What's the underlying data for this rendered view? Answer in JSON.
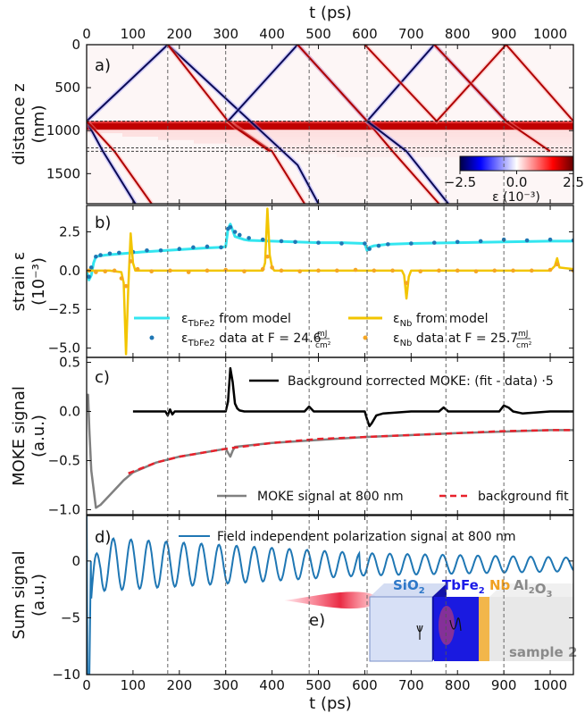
{
  "chart_data": [
    {
      "panel": "a)",
      "type": "heatmap",
      "xlabel": "t (ps)",
      "ylabel": "distance z (nm)",
      "xlim": [
        0,
        1050
      ],
      "ylim": [
        1850,
        0
      ],
      "xticks": [
        0,
        100,
        200,
        300,
        400,
        500,
        600,
        700,
        800,
        900,
        1000
      ],
      "yticks": [
        0,
        500,
        1000,
        1500
      ],
      "colorbar": {
        "label": "ε (10⁻³)",
        "ticks": [
          -2.5,
          0.0,
          2.5
        ],
        "cmap": "seismic"
      },
      "layer_interfaces_nm": [
        890,
        1200,
        1240
      ],
      "pulse_paths": [
        {
          "sign": "negative",
          "points": [
            [
              0,
              890
            ],
            [
              175,
              0
            ],
            [
              455,
              1400
            ],
            [
              500,
              1850
            ]
          ]
        },
        {
          "sign": "negative",
          "points": [
            [
              0,
              890
            ],
            [
              35,
              1240
            ],
            [
              105,
              1850
            ]
          ]
        },
        {
          "sign": "positive",
          "points": [
            [
              0,
              890
            ],
            [
              60,
              1240
            ],
            [
              140,
              1850
            ]
          ]
        },
        {
          "sign": "positive",
          "points": [
            [
              175,
              0
            ],
            [
              305,
              890
            ],
            [
              400,
              1240
            ],
            [
              470,
              1850
            ]
          ]
        },
        {
          "sign": "negative",
          "points": [
            [
              305,
              890
            ],
            [
              455,
              0
            ],
            [
              605,
              890
            ],
            [
              750,
              0
            ],
            [
              905,
              890
            ]
          ]
        },
        {
          "sign": "positive",
          "points": [
            [
              305,
              890
            ],
            [
              320,
              960
            ],
            [
              395,
              1240
            ]
          ]
        },
        {
          "sign": "positive",
          "points": [
            [
              455,
              0
            ],
            [
              605,
              890
            ],
            [
              660,
              1240
            ],
            [
              760,
              1850
            ]
          ]
        },
        {
          "sign": "positive",
          "points": [
            [
              600,
              0
            ],
            [
              755,
              890
            ],
            [
              905,
              0
            ],
            [
              1050,
              890
            ]
          ]
        },
        {
          "sign": "negative",
          "points": [
            [
              605,
              890
            ],
            [
              690,
              1240
            ],
            [
              780,
              1850
            ]
          ]
        },
        {
          "sign": "positive",
          "points": [
            [
              750,
              0
            ],
            [
              905,
              890
            ],
            [
              1000,
              1240
            ]
          ]
        }
      ]
    },
    {
      "panel": "b)",
      "type": "line",
      "xlabel": "t (ps)",
      "ylabel": "strain ε (10⁻³)",
      "xlim": [
        0,
        1050
      ],
      "ylim": [
        -5.6,
        4.2
      ],
      "yticks": [
        -5.0,
        -2.5,
        0.0,
        2.5
      ],
      "series": [
        {
          "name": "ε_TbFe2 from model",
          "style": "line",
          "color": "#33e6f0",
          "x": [
            0,
            5,
            10,
            15,
            20,
            40,
            80,
            120,
            200,
            250,
            290,
            300,
            305,
            310,
            315,
            320,
            330,
            340,
            350,
            400,
            450,
            500,
            550,
            600,
            605,
            610,
            620,
            650,
            700,
            800,
            900,
            1000,
            1050
          ],
          "y": [
            0,
            -0.6,
            -0.3,
            0.5,
            0.9,
            1.0,
            1.1,
            1.2,
            1.35,
            1.45,
            1.5,
            1.55,
            2.7,
            3.0,
            2.6,
            2.2,
            2.1,
            2.0,
            1.95,
            1.9,
            1.85,
            1.8,
            1.8,
            1.75,
            1.3,
            1.5,
            1.6,
            1.7,
            1.75,
            1.8,
            1.85,
            1.9,
            1.9
          ]
        },
        {
          "name": "ε_TbFe2 data at F = 24.6 mJ/cm²",
          "style": "scatter",
          "color": "#1f77b4",
          "x": [
            5,
            10,
            20,
            30,
            50,
            70,
            100,
            130,
            160,
            200,
            230,
            260,
            290,
            305,
            310,
            320,
            330,
            350,
            380,
            420,
            450,
            500,
            550,
            600,
            610,
            630,
            650,
            700,
            750,
            800,
            850,
            900,
            950,
            1000,
            1050
          ],
          "y": [
            -0.4,
            0.2,
            0.9,
            1.0,
            1.1,
            1.15,
            1.2,
            1.3,
            1.3,
            1.4,
            1.5,
            1.55,
            1.5,
            2.7,
            2.8,
            2.5,
            2.3,
            2.1,
            2.0,
            1.9,
            1.85,
            1.8,
            1.75,
            1.75,
            1.4,
            1.6,
            1.7,
            1.75,
            1.8,
            1.85,
            1.9,
            2.0,
            1.95,
            2.0,
            1.95
          ]
        },
        {
          "name": "ε_Nb from model",
          "style": "line",
          "color": "#f2c500",
          "x": [
            0,
            50,
            75,
            80,
            85,
            90,
            95,
            100,
            105,
            300,
            380,
            385,
            390,
            395,
            400,
            405,
            600,
            680,
            685,
            690,
            695,
            700,
            1000,
            1010,
            1015,
            1020,
            1050
          ],
          "y": [
            0,
            0,
            -0.1,
            -0.8,
            -5.4,
            -1.0,
            2.4,
            0.5,
            0,
            0,
            0,
            0.5,
            4.0,
            1.0,
            0.2,
            0,
            0,
            0,
            -0.3,
            -1.8,
            -0.4,
            0,
            0,
            0.3,
            0.8,
            0.2,
            0.1
          ]
        },
        {
          "name": "ε_Nb data at F = 25.7 mJ/cm²",
          "style": "scatter",
          "color": "#f5a623",
          "x": [
            5,
            20,
            40,
            60,
            75,
            85,
            95,
            110,
            140,
            180,
            220,
            260,
            300,
            340,
            380,
            390,
            400,
            420,
            460,
            500,
            540,
            580,
            620,
            660,
            690,
            720,
            760,
            800,
            840,
            880,
            920,
            960,
            1000,
            1015,
            1050
          ],
          "y": [
            0,
            -0.1,
            -0.05,
            0,
            -0.5,
            -1.0,
            0.6,
            0.1,
            -0.05,
            0,
            -0.1,
            0,
            0.05,
            -0.05,
            0.1,
            0.9,
            0.2,
            0,
            -0.05,
            0,
            0,
            0.05,
            0,
            0,
            -0.8,
            -0.05,
            0,
            0,
            -0.05,
            0,
            0,
            0,
            0.05,
            0.4,
            0
          ]
        }
      ],
      "legend": [
        "ε_TbFe2 from model",
        "ε_TbFe2 data at F = 24.6 mJ/cm²",
        "ε_Nb from model",
        "ε_Nb data at F = 25.7 mJ/cm²"
      ]
    },
    {
      "panel": "c)",
      "type": "line",
      "xlabel": "t (ps)",
      "ylabel": "MOKE signal (a.u.)",
      "xlim": [
        0,
        1050
      ],
      "ylim": [
        -1.05,
        0.55
      ],
      "yticks": [
        -1.0,
        -0.5,
        0.0,
        0.5
      ],
      "series": [
        {
          "name": "Background corrected MOKE: (fit - data) ·5",
          "style": "line",
          "color": "#000000",
          "x": [
            100,
            170,
            175,
            180,
            185,
            190,
            300,
            305,
            310,
            315,
            320,
            325,
            330,
            340,
            400,
            470,
            480,
            490,
            500,
            600,
            605,
            610,
            615,
            625,
            640,
            700,
            760,
            770,
            780,
            800,
            890,
            900,
            910,
            920,
            940,
            1000,
            1050
          ],
          "y": [
            0.0,
            0.0,
            -0.04,
            0.02,
            -0.03,
            0.0,
            0.0,
            0.1,
            0.44,
            0.3,
            0.08,
            0.03,
            0.01,
            0.0,
            0.0,
            0.0,
            0.05,
            0.0,
            0.0,
            0.0,
            -0.08,
            -0.15,
            -0.12,
            -0.04,
            -0.02,
            0.0,
            0.0,
            0.04,
            0.0,
            0.0,
            0.0,
            0.06,
            0.04,
            0.0,
            -0.02,
            0.0,
            0.0
          ]
        },
        {
          "name": "MOKE signal at 800 nm",
          "style": "line",
          "color": "#808080",
          "x": [
            0,
            3,
            6,
            10,
            20,
            30,
            50,
            80,
            100,
            150,
            200,
            300,
            305,
            310,
            315,
            320,
            400,
            600,
            800,
            1000,
            1050
          ],
          "y": [
            0,
            0.17,
            -0.2,
            -0.6,
            -0.98,
            -0.95,
            -0.85,
            -0.7,
            -0.62,
            -0.52,
            -0.46,
            -0.38,
            -0.42,
            -0.46,
            -0.4,
            -0.36,
            -0.32,
            -0.26,
            -0.22,
            -0.19,
            -0.19
          ]
        },
        {
          "name": "background fit",
          "style": "dashed",
          "color": "#e8212b",
          "x": [
            90,
            150,
            200,
            300,
            400,
            500,
            600,
            700,
            800,
            900,
            1000,
            1050
          ],
          "y": [
            -0.63,
            -0.52,
            -0.46,
            -0.38,
            -0.32,
            -0.28,
            -0.26,
            -0.24,
            -0.22,
            -0.2,
            -0.19,
            -0.19
          ]
        }
      ],
      "legend": [
        "Background corrected MOKE: (fit - data) ·5",
        "MOKE signal at 800 nm",
        "background fit"
      ]
    },
    {
      "panel": "d)",
      "type": "line",
      "xlabel": "t (ps)",
      "ylabel": "Sum signal (a.u.)",
      "xlim": [
        0,
        1050
      ],
      "ylim": [
        -10,
        4
      ],
      "yticks": [
        -10,
        -5,
        0
      ],
      "series": [
        {
          "name": "Field independent polarization signal at 800 nm",
          "style": "line",
          "color": "#1f77b4",
          "model": {
            "period_ps": 38,
            "baseline": -0.3,
            "amplitude_start": 2.4,
            "amplitude_mid": 1.0,
            "amplitude_end": 0.6,
            "phase_jump_at_ps": 590,
            "initial_dip": -10
          }
        }
      ],
      "legend": [
        "Field independent polarization signal at 800 nm"
      ]
    }
  ],
  "vertical_guides_ps": [
    175,
    300,
    480,
    605,
    775,
    900
  ],
  "inset": {
    "panel": "e)",
    "layers": [
      "SiO₂",
      "TbFe₂",
      "Nb",
      "Al₂O₃"
    ],
    "layer_colors": [
      "#2f78c8",
      "#1b1be8",
      "#f0a020",
      "#8a8a8a"
    ],
    "sample_label": "sample 2"
  }
}
